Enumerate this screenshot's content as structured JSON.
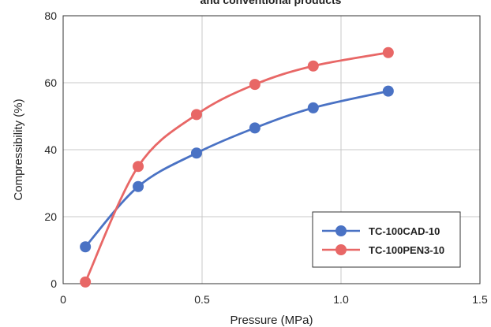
{
  "chart_data": {
    "type": "line",
    "title": "and conventional products",
    "xlabel": "Pressure (MPa)",
    "ylabel": "Compressibility (%)",
    "xlim": [
      0,
      1.5
    ],
    "ylim": [
      0,
      80
    ],
    "x_ticks": [
      0,
      0.5,
      1.0,
      1.5
    ],
    "x_tick_labels": [
      "0",
      "0.5",
      "1.0",
      "1.5"
    ],
    "y_ticks": [
      0,
      20,
      40,
      60,
      80
    ],
    "y_tick_labels": [
      "0",
      "20",
      "40",
      "60",
      "80"
    ],
    "grid": true,
    "legend_position": "bottom-right",
    "series": [
      {
        "name": "TC-100CAD-10",
        "color": "#4a72c4",
        "x": [
          0.08,
          0.27,
          0.48,
          0.69,
          0.9,
          1.17
        ],
        "y": [
          11,
          29,
          39,
          46.5,
          52.5,
          57.5
        ]
      },
      {
        "name": "TC-100PEN3-10",
        "color": "#e86766",
        "x": [
          0.08,
          0.27,
          0.48,
          0.69,
          0.9,
          1.17
        ],
        "y": [
          0.5,
          35,
          50.5,
          59.5,
          65,
          69
        ]
      }
    ]
  }
}
